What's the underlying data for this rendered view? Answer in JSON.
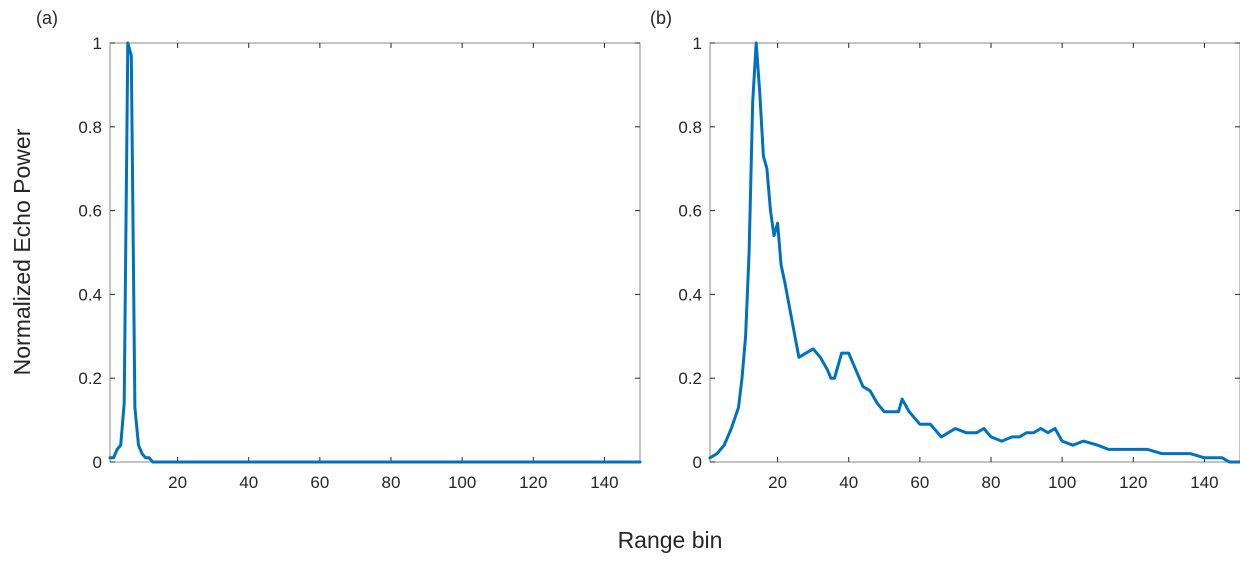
{
  "figure": {
    "ylabel": "Normalized Echo Power",
    "xlabel": "Range bin"
  },
  "colors": {
    "line": "#0072BD",
    "axes": "#262626",
    "frame": "#888888"
  },
  "chart_data": [
    {
      "type": "line",
      "panel_label": "(a)",
      "xlim": [
        1,
        150
      ],
      "ylim": [
        0,
        1
      ],
      "xticks": [
        20,
        40,
        60,
        80,
        100,
        120,
        140
      ],
      "yticks": [
        0,
        0.2,
        0.4,
        0.6,
        0.8,
        1
      ],
      "ytick_labels": [
        "0",
        "0.2",
        "0.4",
        "0.6",
        "0.8",
        "1"
      ],
      "grid": false,
      "series": [
        {
          "x": [
            1,
            2,
            3,
            4,
            5,
            6,
            7,
            8,
            9,
            10,
            11,
            12,
            13,
            14,
            20,
            40,
            60,
            80,
            100,
            120,
            140,
            150
          ],
          "values": [
            0.01,
            0.01,
            0.03,
            0.04,
            0.14,
            1.0,
            0.97,
            0.13,
            0.04,
            0.02,
            0.01,
            0.01,
            0.0,
            0.0,
            0.0,
            0.0,
            0.0,
            0.0,
            0.0,
            0.0,
            0.0,
            0.0
          ]
        }
      ]
    },
    {
      "type": "line",
      "panel_label": "(b)",
      "xlim": [
        1,
        150
      ],
      "ylim": [
        0,
        1
      ],
      "xticks": [
        20,
        40,
        60,
        80,
        100,
        120,
        140
      ],
      "yticks": [
        0,
        0.2,
        0.4,
        0.6,
        0.8,
        1
      ],
      "ytick_labels": [
        "0",
        "0.2",
        "0.4",
        "0.6",
        "0.8",
        "1"
      ],
      "grid": false,
      "series": [
        {
          "x": [
            1,
            3,
            5,
            7,
            9,
            10,
            11,
            12,
            13,
            14,
            15,
            16,
            17,
            18,
            19,
            20,
            21,
            22,
            24,
            26,
            28,
            30,
            32,
            34,
            35,
            36,
            38,
            40,
            42,
            44,
            46,
            48,
            50,
            52,
            54,
            55,
            57,
            60,
            63,
            66,
            68,
            70,
            73,
            76,
            78,
            80,
            83,
            86,
            88,
            90,
            92,
            94,
            96,
            98,
            100,
            103,
            106,
            110,
            113,
            116,
            120,
            124,
            128,
            132,
            136,
            140,
            143,
            145,
            147,
            150
          ],
          "values": [
            0.01,
            0.02,
            0.04,
            0.08,
            0.13,
            0.2,
            0.3,
            0.5,
            0.86,
            1.0,
            0.88,
            0.73,
            0.7,
            0.6,
            0.54,
            0.57,
            0.47,
            0.43,
            0.34,
            0.25,
            0.26,
            0.27,
            0.25,
            0.22,
            0.2,
            0.2,
            0.26,
            0.26,
            0.22,
            0.18,
            0.17,
            0.14,
            0.12,
            0.12,
            0.12,
            0.15,
            0.12,
            0.09,
            0.09,
            0.06,
            0.07,
            0.08,
            0.07,
            0.07,
            0.08,
            0.06,
            0.05,
            0.06,
            0.06,
            0.07,
            0.07,
            0.08,
            0.07,
            0.08,
            0.05,
            0.04,
            0.05,
            0.04,
            0.03,
            0.03,
            0.03,
            0.03,
            0.02,
            0.02,
            0.02,
            0.01,
            0.01,
            0.01,
            0.0,
            0.0
          ]
        }
      ]
    }
  ]
}
